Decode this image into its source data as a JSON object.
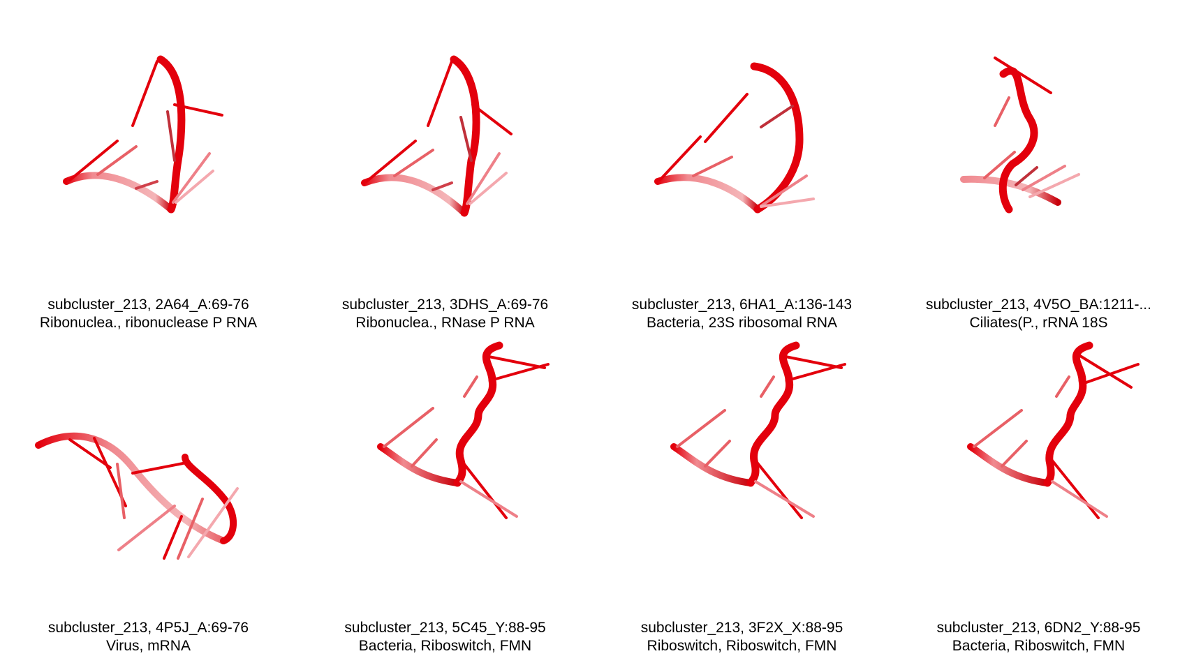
{
  "panels": [
    {
      "line1": "subcluster_213, 2A64_A:69-76",
      "line2": "Ribonuclea., ribonuclease P RNA",
      "shape": "a"
    },
    {
      "line1": "subcluster_213, 3DHS_A:69-76",
      "line2": "Ribonuclea., RNase P RNA",
      "shape": "a"
    },
    {
      "line1": "subcluster_213, 6HA1_A:136-143",
      "line2": "Bacteria, 23S ribosomal RNA",
      "shape": "b"
    },
    {
      "line1": "subcluster_213, 4V5O_BA:1211-...",
      "line2": "Ciliates(P., rRNA 18S",
      "shape": "c"
    },
    {
      "line1": "subcluster_213, 4P5J_A:69-76",
      "line2": "Virus, mRNA",
      "shape": "d"
    },
    {
      "line1": "subcluster_213, 5C45_Y:88-95",
      "line2": "Bacteria, Riboswitch, FMN",
      "shape": "e"
    },
    {
      "line1": "subcluster_213, 3F2X_X:88-95",
      "line2": "Riboswitch, Riboswitch, FMN",
      "shape": "e"
    },
    {
      "line1": "subcluster_213, 6DN2_Y:88-95",
      "line2": "Bacteria, Riboswitch, FMN",
      "shape": "e"
    }
  ],
  "colors": {
    "strand": "#e3000c",
    "strand_dark": "#a8000a",
    "strand_light": "#f2a3a6",
    "background": "#ffffff"
  }
}
